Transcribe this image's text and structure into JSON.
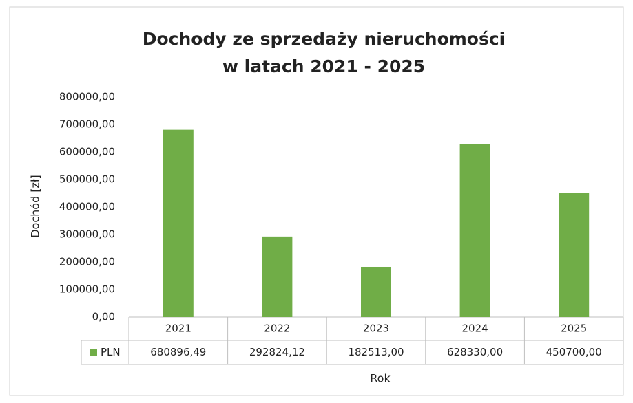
{
  "chart_data": {
    "type": "bar",
    "title": [
      "Dochody ze sprzedaży nieruchomości",
      "w latach 2021 - 2025"
    ],
    "xlabel": "Rok",
    "ylabel": "Dochód [zł]",
    "categories": [
      "2021",
      "2022",
      "2023",
      "2024",
      "2025"
    ],
    "series": [
      {
        "name": "PLN",
        "color": "#70ad47",
        "values": [
          680896.49,
          292824.12,
          182513.0,
          628330.0,
          450700.0
        ],
        "value_labels": [
          "680896,49",
          "292824,12",
          "182513,00",
          "628330,00",
          "450700,00"
        ]
      }
    ],
    "ylim": [
      0,
      800000
    ],
    "yticks": [
      {
        "value": 0,
        "label": "0,00"
      },
      {
        "value": 100000,
        "label": "100000,00"
      },
      {
        "value": 200000,
        "label": "200000,00"
      },
      {
        "value": 300000,
        "label": "300000,00"
      },
      {
        "value": 400000,
        "label": "400000,00"
      },
      {
        "value": 500000,
        "label": "500000,00"
      },
      {
        "value": 600000,
        "label": "600000,00"
      },
      {
        "value": 700000,
        "label": "700000,00"
      },
      {
        "value": 800000,
        "label": "800000,00"
      }
    ],
    "grid": false,
    "legend": "data-table"
  }
}
